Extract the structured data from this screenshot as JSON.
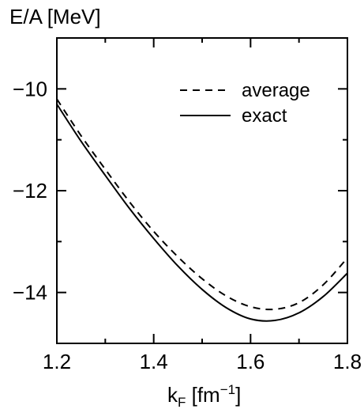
{
  "chart_data": {
    "type": "line",
    "title": "",
    "ylabel": "E/A [MeV]",
    "xlabel": {
      "base": "k",
      "sub": "F",
      "unit_open": " [fm",
      "sup": "−1",
      "unit_close": "]"
    },
    "xlim": [
      1.2,
      1.8
    ],
    "ylim": [
      -15,
      -9
    ],
    "x_ticks": [
      {
        "value": 1.2,
        "label": "1.2"
      },
      {
        "value": 1.4,
        "label": "1.4"
      },
      {
        "value": 1.6,
        "label": "1.6"
      },
      {
        "value": 1.8,
        "label": "1.8"
      }
    ],
    "y_ticks": [
      {
        "value": -10,
        "label": "−10"
      },
      {
        "value": -12,
        "label": "−12"
      },
      {
        "value": -14,
        "label": "−14"
      }
    ],
    "grid": false,
    "legend_position": "top-right",
    "series": [
      {
        "name": "average",
        "style": "dashed",
        "x": [
          1.2,
          1.25,
          1.3,
          1.35,
          1.4,
          1.45,
          1.5,
          1.55,
          1.6,
          1.65,
          1.7,
          1.75,
          1.8
        ],
        "y": [
          -10.2,
          -10.92,
          -11.58,
          -12.22,
          -12.8,
          -13.3,
          -13.73,
          -14.07,
          -14.28,
          -14.33,
          -14.2,
          -13.85,
          -13.32
        ]
      },
      {
        "name": "exact",
        "style": "solid",
        "x": [
          1.2,
          1.25,
          1.3,
          1.35,
          1.4,
          1.45,
          1.5,
          1.55,
          1.6,
          1.65,
          1.7,
          1.75,
          1.8
        ],
        "y": [
          -10.3,
          -11.03,
          -11.7,
          -12.35,
          -12.94,
          -13.48,
          -13.94,
          -14.3,
          -14.52,
          -14.55,
          -14.4,
          -14.08,
          -13.62
        ]
      }
    ]
  }
}
